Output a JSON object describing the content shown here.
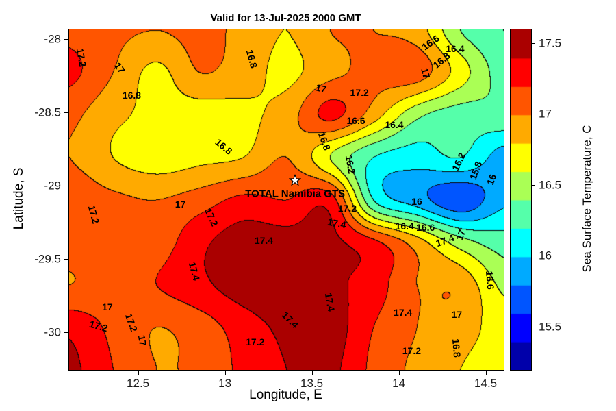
{
  "chart_data": {
    "type": "filled_contour",
    "title": "Valid for 13-Jul-2025 2000 GMT",
    "xlabel": "Longitude, E",
    "ylabel": "Latitude, S",
    "xlim": [
      12.1,
      14.6
    ],
    "ylim_top": -27.93,
    "ylim_bottom": -30.25,
    "contour_interval": 0.2,
    "xticks": [
      {
        "v": 12.5,
        "label": "12.5"
      },
      {
        "v": 13,
        "label": "13"
      },
      {
        "v": 13.5,
        "label": "13.5"
      },
      {
        "v": 14,
        "label": "14"
      },
      {
        "v": 14.5,
        "label": "14.5"
      }
    ],
    "yticks": [
      {
        "v": -28,
        "label": "-28"
      },
      {
        "v": -28.5,
        "label": "-28.5"
      },
      {
        "v": -29,
        "label": "-29"
      },
      {
        "v": -29.5,
        "label": "-29.5"
      },
      {
        "v": -30,
        "label": "-30"
      }
    ],
    "colorbar": {
      "label": "Sea Surface Temperature, C",
      "colormap": "jet",
      "min": 15.2,
      "max": 17.6,
      "step": 0.2,
      "ticks": [
        {
          "v": 15.5,
          "label": "15.5"
        },
        {
          "v": 16,
          "label": "16"
        },
        {
          "v": 16.5,
          "label": "16.5"
        },
        {
          "v": 17,
          "label": "17"
        },
        {
          "v": 17.5,
          "label": "17.5"
        }
      ]
    },
    "station": {
      "label": "TOTAL Namibia GTS",
      "marker": "star",
      "lon": 13.4,
      "lat": -28.97,
      "label_lon": 13.4,
      "label_lat": -29.05
    },
    "grid": {
      "lons": [
        12.1,
        12.35,
        12.6,
        12.85,
        13.1,
        13.35,
        13.6,
        13.85,
        14.1,
        14.35,
        14.6
      ],
      "lats": [
        -27.93,
        -28.22,
        -28.51,
        -28.8,
        -29.09,
        -29.38,
        -29.67,
        -29.96,
        -30.25
      ],
      "values_c": [
        [
          17.15,
          17.05,
          17.0,
          17.05,
          16.95,
          16.8,
          17.0,
          17.0,
          16.9,
          16.4,
          16.2
        ],
        [
          17.25,
          17.0,
          16.75,
          17.0,
          16.9,
          16.75,
          16.95,
          17.05,
          17.1,
          16.7,
          16.3
        ],
        [
          17.05,
          16.85,
          16.75,
          16.7,
          16.75,
          16.9,
          17.25,
          16.9,
          16.45,
          16.3,
          16.35
        ],
        [
          17.0,
          16.8,
          16.7,
          16.75,
          16.8,
          17.0,
          16.6,
          16.2,
          16.1,
          16.2,
          15.9
        ],
        [
          17.15,
          17.05,
          17.0,
          17.1,
          17.25,
          17.2,
          17.3,
          16.2,
          15.9,
          15.65,
          15.95
        ],
        [
          17.1,
          17.15,
          17.1,
          17.35,
          17.5,
          17.5,
          17.45,
          17.25,
          16.9,
          16.5,
          16.3
        ],
        [
          17.0,
          17.1,
          17.2,
          17.35,
          17.5,
          17.55,
          17.45,
          17.3,
          17.0,
          16.95,
          16.55
        ],
        [
          17.35,
          17.15,
          17.0,
          17.1,
          17.3,
          17.45,
          17.5,
          17.2,
          17.0,
          16.9,
          16.7
        ],
        [
          17.45,
          17.2,
          17.0,
          17.05,
          17.25,
          17.4,
          17.45,
          17.15,
          16.95,
          16.8,
          16.65
        ]
      ]
    },
    "contour_labels": [
      {
        "t": "17.2",
        "lon": 12.17,
        "lat": -28.12,
        "rot": 80
      },
      {
        "t": "17",
        "lon": 12.39,
        "lat": -28.19,
        "rot": 55
      },
      {
        "t": "16.8",
        "lon": 12.46,
        "lat": -28.38,
        "rot": 0
      },
      {
        "t": "16.8",
        "lon": 13.15,
        "lat": -28.13,
        "rot": 75
      },
      {
        "t": "17",
        "lon": 13.55,
        "lat": -28.33,
        "rot": 15
      },
      {
        "t": "17.2",
        "lon": 13.77,
        "lat": -28.36,
        "rot": 0
      },
      {
        "t": "16.6",
        "lon": 14.18,
        "lat": -28.02,
        "rot": -35
      },
      {
        "t": "16.4",
        "lon": 14.32,
        "lat": -28.06,
        "rot": 0
      },
      {
        "t": "16.8",
        "lon": 14.24,
        "lat": -28.14,
        "rot": -40
      },
      {
        "t": "17",
        "lon": 14.15,
        "lat": -28.23,
        "rot": 75
      },
      {
        "t": "16.8",
        "lon": 12.99,
        "lat": -28.73,
        "rot": 40
      },
      {
        "t": "16.6",
        "lon": 13.75,
        "lat": -28.55,
        "rot": 0
      },
      {
        "t": "16.4",
        "lon": 13.97,
        "lat": -28.58,
        "rot": 0
      },
      {
        "t": "16.8",
        "lon": 13.57,
        "lat": -28.69,
        "rot": 70
      },
      {
        "t": "16.2",
        "lon": 13.72,
        "lat": -28.85,
        "rot": 80
      },
      {
        "t": "16.2",
        "lon": 14.34,
        "lat": -28.83,
        "rot": -65
      },
      {
        "t": "15.8",
        "lon": 14.44,
        "lat": -28.89,
        "rot": -70
      },
      {
        "t": "16",
        "lon": 14.53,
        "lat": -28.95,
        "rot": -70
      },
      {
        "t": "16",
        "lon": 14.1,
        "lat": -29.1,
        "rot": 0
      },
      {
        "t": "16.4",
        "lon": 14.03,
        "lat": -29.27,
        "rot": 0
      },
      {
        "t": "16.6",
        "lon": 14.15,
        "lat": -29.28,
        "rot": 0
      },
      {
        "t": "17.4",
        "lon": 14.26,
        "lat": -29.37,
        "rot": -20
      },
      {
        "t": "17",
        "lon": 14.35,
        "lat": -29.33,
        "rot": -70
      },
      {
        "t": "17.4",
        "lon": 13.22,
        "lat": -29.37,
        "rot": 0
      },
      {
        "t": "17.4",
        "lon": 13.64,
        "lat": -29.25,
        "rot": 10
      },
      {
        "t": "17.2",
        "lon": 13.7,
        "lat": -29.15,
        "rot": 0
      },
      {
        "t": "17.2",
        "lon": 12.24,
        "lat": -29.19,
        "rot": 75
      },
      {
        "t": "17",
        "lon": 12.74,
        "lat": -29.12,
        "rot": 0
      },
      {
        "t": "17.2",
        "lon": 12.92,
        "lat": -29.21,
        "rot": 65
      },
      {
        "t": "17.4",
        "lon": 12.82,
        "lat": -29.58,
        "rot": 75
      },
      {
        "t": "17.4",
        "lon": 13.6,
        "lat": -29.79,
        "rot": 80
      },
      {
        "t": "17.4",
        "lon": 14.02,
        "lat": -29.86,
        "rot": 0
      },
      {
        "t": "17",
        "lon": 14.33,
        "lat": -29.87,
        "rot": 0
      },
      {
        "t": "16.6",
        "lon": 14.52,
        "lat": -29.64,
        "rot": 85
      },
      {
        "t": "16.8",
        "lon": 14.33,
        "lat": -30.1,
        "rot": 85
      },
      {
        "t": "17.2",
        "lon": 14.07,
        "lat": -30.12,
        "rot": 0
      },
      {
        "t": "17.2",
        "lon": 13.17,
        "lat": -30.06,
        "rot": 0
      },
      {
        "t": "17.4",
        "lon": 13.37,
        "lat": -29.91,
        "rot": 45
      },
      {
        "t": "17",
        "lon": 12.32,
        "lat": -29.82,
        "rot": 0
      },
      {
        "t": "17.2",
        "lon": 12.27,
        "lat": -29.95,
        "rot": 15
      },
      {
        "t": "17.2",
        "lon": 12.46,
        "lat": -29.93,
        "rot": 70
      },
      {
        "t": "17",
        "lon": 12.52,
        "lat": -30.05,
        "rot": 80
      }
    ]
  }
}
